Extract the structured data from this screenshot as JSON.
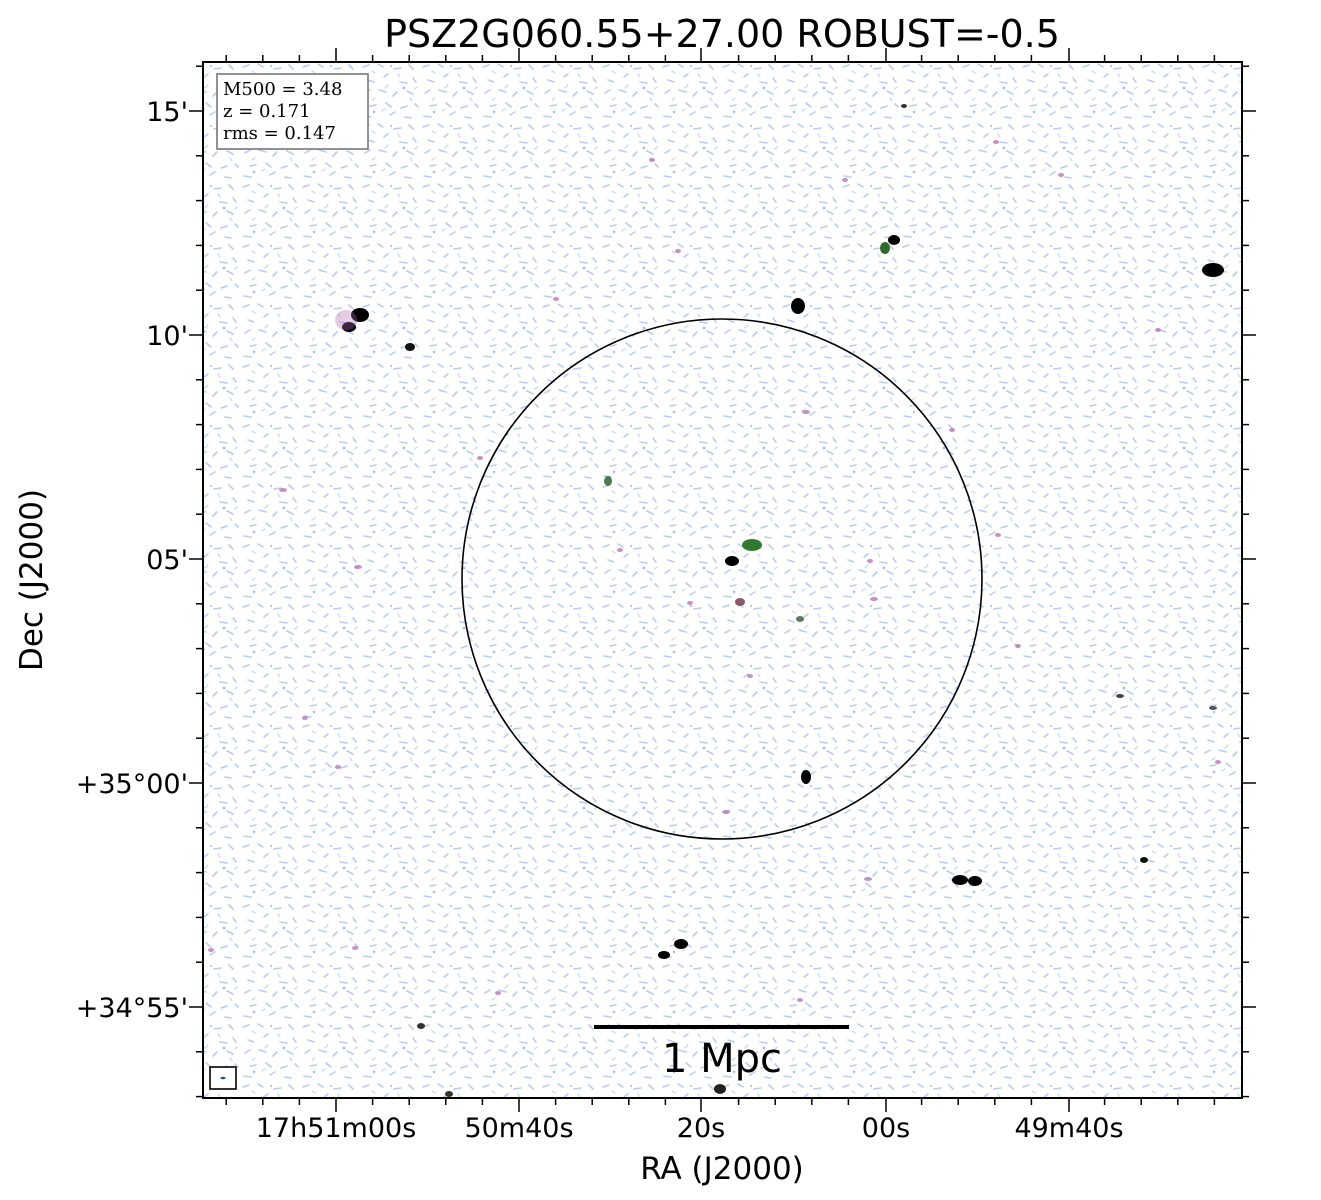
{
  "title": "PSZ2G060.55+27.00 ROBUST=-0.5",
  "legend": {
    "lines": [
      "M500 = 3.48",
      "z = 0.171",
      "rms = 0.147"
    ]
  },
  "x_axis": {
    "label": "RA (J2000)",
    "ticks": [
      "17h51m00s",
      "50m40s",
      "20s",
      "00s",
      "49m40s"
    ]
  },
  "y_axis": {
    "label": "Dec (J2000)",
    "ticks": [
      "15'",
      "10'",
      "05'",
      "+35°00'",
      "+34°55'"
    ]
  },
  "scale_bar": {
    "label": "1 Mpc"
  },
  "colors": {
    "noise_blue": "#b7c9ec",
    "noise_light": "#c9dcef",
    "source_magenta": "#b060b0",
    "source_green": "#3c7a3c",
    "source_black": "#000000",
    "frame": "#000000"
  }
}
